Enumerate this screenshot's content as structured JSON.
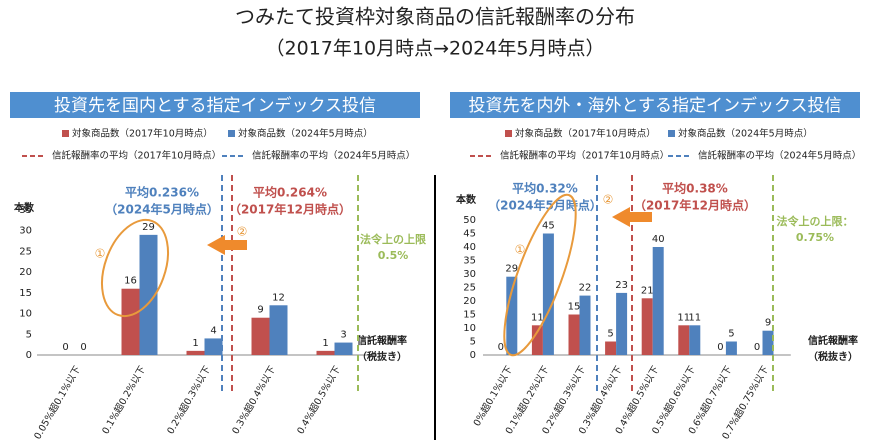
{
  "title": "つみたて投資枠対象商品の信託報酬率の分布",
  "subtitle": "（2017年10月時点→2024年5月時点）",
  "chart_data": [
    {
      "type": "bar",
      "title": "投資先を国内とする指定インデックス投信",
      "ylabel": "本数",
      "xlabel": "信託報酬率",
      "xlabel_note": "（税抜き）",
      "categories": [
        "0.05%超0.1%以下",
        "0.1%超0.2%以下",
        "0.2%超0.3%以下",
        "0.3%超0.4%以下",
        "0.4%超0.5%以下"
      ],
      "series": [
        {
          "name": "対象商品数（2017年10月時点）",
          "color": "#c0504d",
          "values": [
            0,
            16,
            1,
            9,
            1
          ]
        },
        {
          "name": "対象商品数（2024年5月時点）",
          "color": "#4f81bd",
          "values": [
            0,
            29,
            4,
            12,
            3
          ]
        }
      ],
      "ylim": [
        0,
        35
      ],
      "yticks": [
        0,
        5,
        10,
        15,
        20,
        25,
        30,
        35
      ],
      "ref_lines": [
        {
          "name": "信託報酬率の平均（2017年10月時点）",
          "color": "#c0504d",
          "value": 0.264,
          "label": "平均0.264%",
          "note": "（2017年12月時点）"
        },
        {
          "name": "信託報酬率の平均（2024年5月時点）",
          "color": "#4f81bd",
          "value": 0.236,
          "label": "平均0.236%",
          "note": "（2024年5月時点）"
        }
      ],
      "limit": {
        "label": "法令上の上限",
        "note": "0.5%",
        "value": 0.5,
        "color": "#9bbb59"
      },
      "annotations": [
        "①",
        "②"
      ]
    },
    {
      "type": "bar",
      "title": "投資先を内外・海外とする指定インデックス投信",
      "ylabel": "本数",
      "xlabel": "信託報酬率",
      "xlabel_note": "（税抜き）",
      "categories": [
        "0%超0.1%以下",
        "0.1%超0.2%以下",
        "0.2%超0.3%以下",
        "0.3%超0.4%以下",
        "0.4%超0.5%以下",
        "0.5%超0.6%以下",
        "0.6%超0.7%以下",
        "0.7%超0.75%以下"
      ],
      "series": [
        {
          "name": "対象商品数（2017年10月時点）",
          "color": "#c0504d",
          "values": [
            0,
            11,
            15,
            5,
            21,
            11,
            0,
            0
          ]
        },
        {
          "name": "対象商品数（2024年5月時点）",
          "color": "#4f81bd",
          "values": [
            29,
            45,
            22,
            23,
            40,
            11,
            5,
            9
          ]
        }
      ],
      "ylim": [
        0,
        50
      ],
      "yticks": [
        0,
        5,
        10,
        15,
        20,
        25,
        30,
        35,
        40,
        45,
        50
      ],
      "ref_lines": [
        {
          "name": "信託報酬率の平均（2017年10月時点）",
          "color": "#c0504d",
          "value": 0.38,
          "label": "平均0.38%",
          "note": "（2017年12月時点）"
        },
        {
          "name": "信託報酬率の平均（2024年5月時点）",
          "color": "#4f81bd",
          "value": 0.32,
          "label": "平均0.32%",
          "note": "（2024年5月時点）"
        }
      ],
      "limit": {
        "label": "法令上の上限：",
        "note": "0.75%",
        "value": 0.75,
        "color": "#9bbb59"
      },
      "annotations": [
        "①",
        "②"
      ]
    }
  ]
}
